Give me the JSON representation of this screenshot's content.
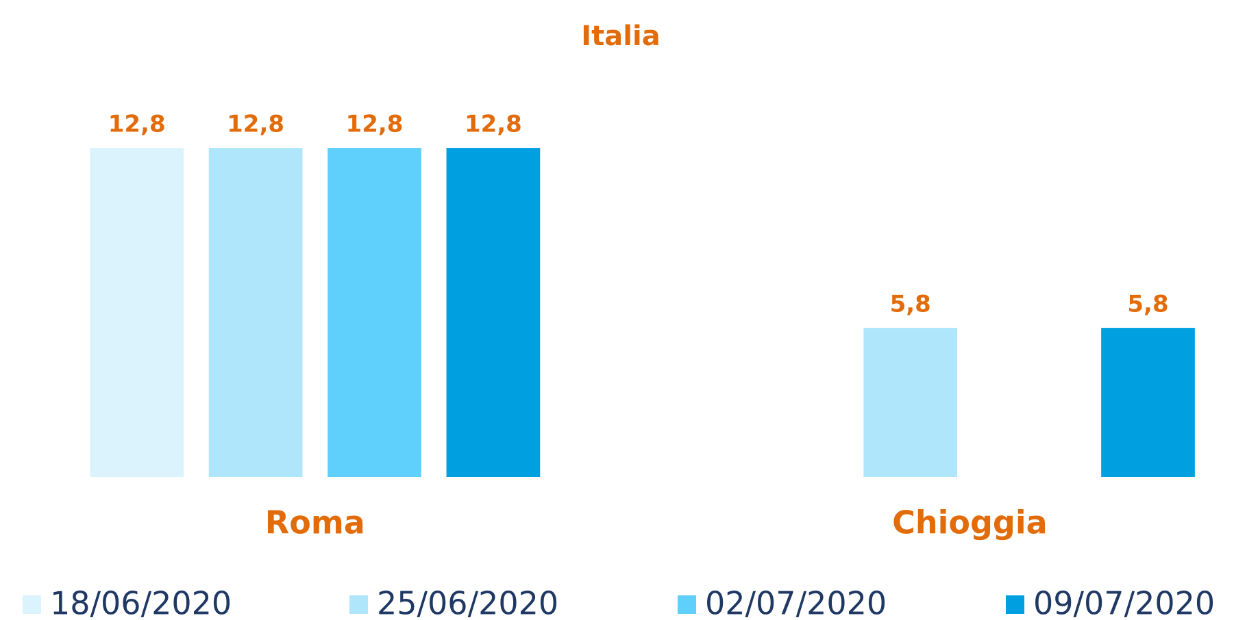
{
  "chart_data": {
    "type": "bar",
    "title": "Italia",
    "categories": [
      "Roma",
      "Chioggia"
    ],
    "series": [
      {
        "name": "18/06/2020",
        "color": "#dbf3fc",
        "values": [
          12.8,
          null
        ],
        "value_labels": [
          "12,8",
          null
        ]
      },
      {
        "name": "25/06/2020",
        "color": "#b0e6fc",
        "values": [
          12.8,
          5.8
        ],
        "value_labels": [
          "12,8",
          "5,8"
        ]
      },
      {
        "name": "02/07/2020",
        "color": "#5fd0fb",
        "values": [
          12.8,
          null
        ],
        "value_labels": [
          "12,8",
          null
        ]
      },
      {
        "name": "09/07/2020",
        "color": "#00a0e0",
        "values": [
          12.8,
          5.8
        ],
        "value_labels": [
          "12,8",
          "5,8"
        ]
      }
    ],
    "ylim": [
      0,
      14
    ],
    "grid": false,
    "legend": "bottom"
  }
}
